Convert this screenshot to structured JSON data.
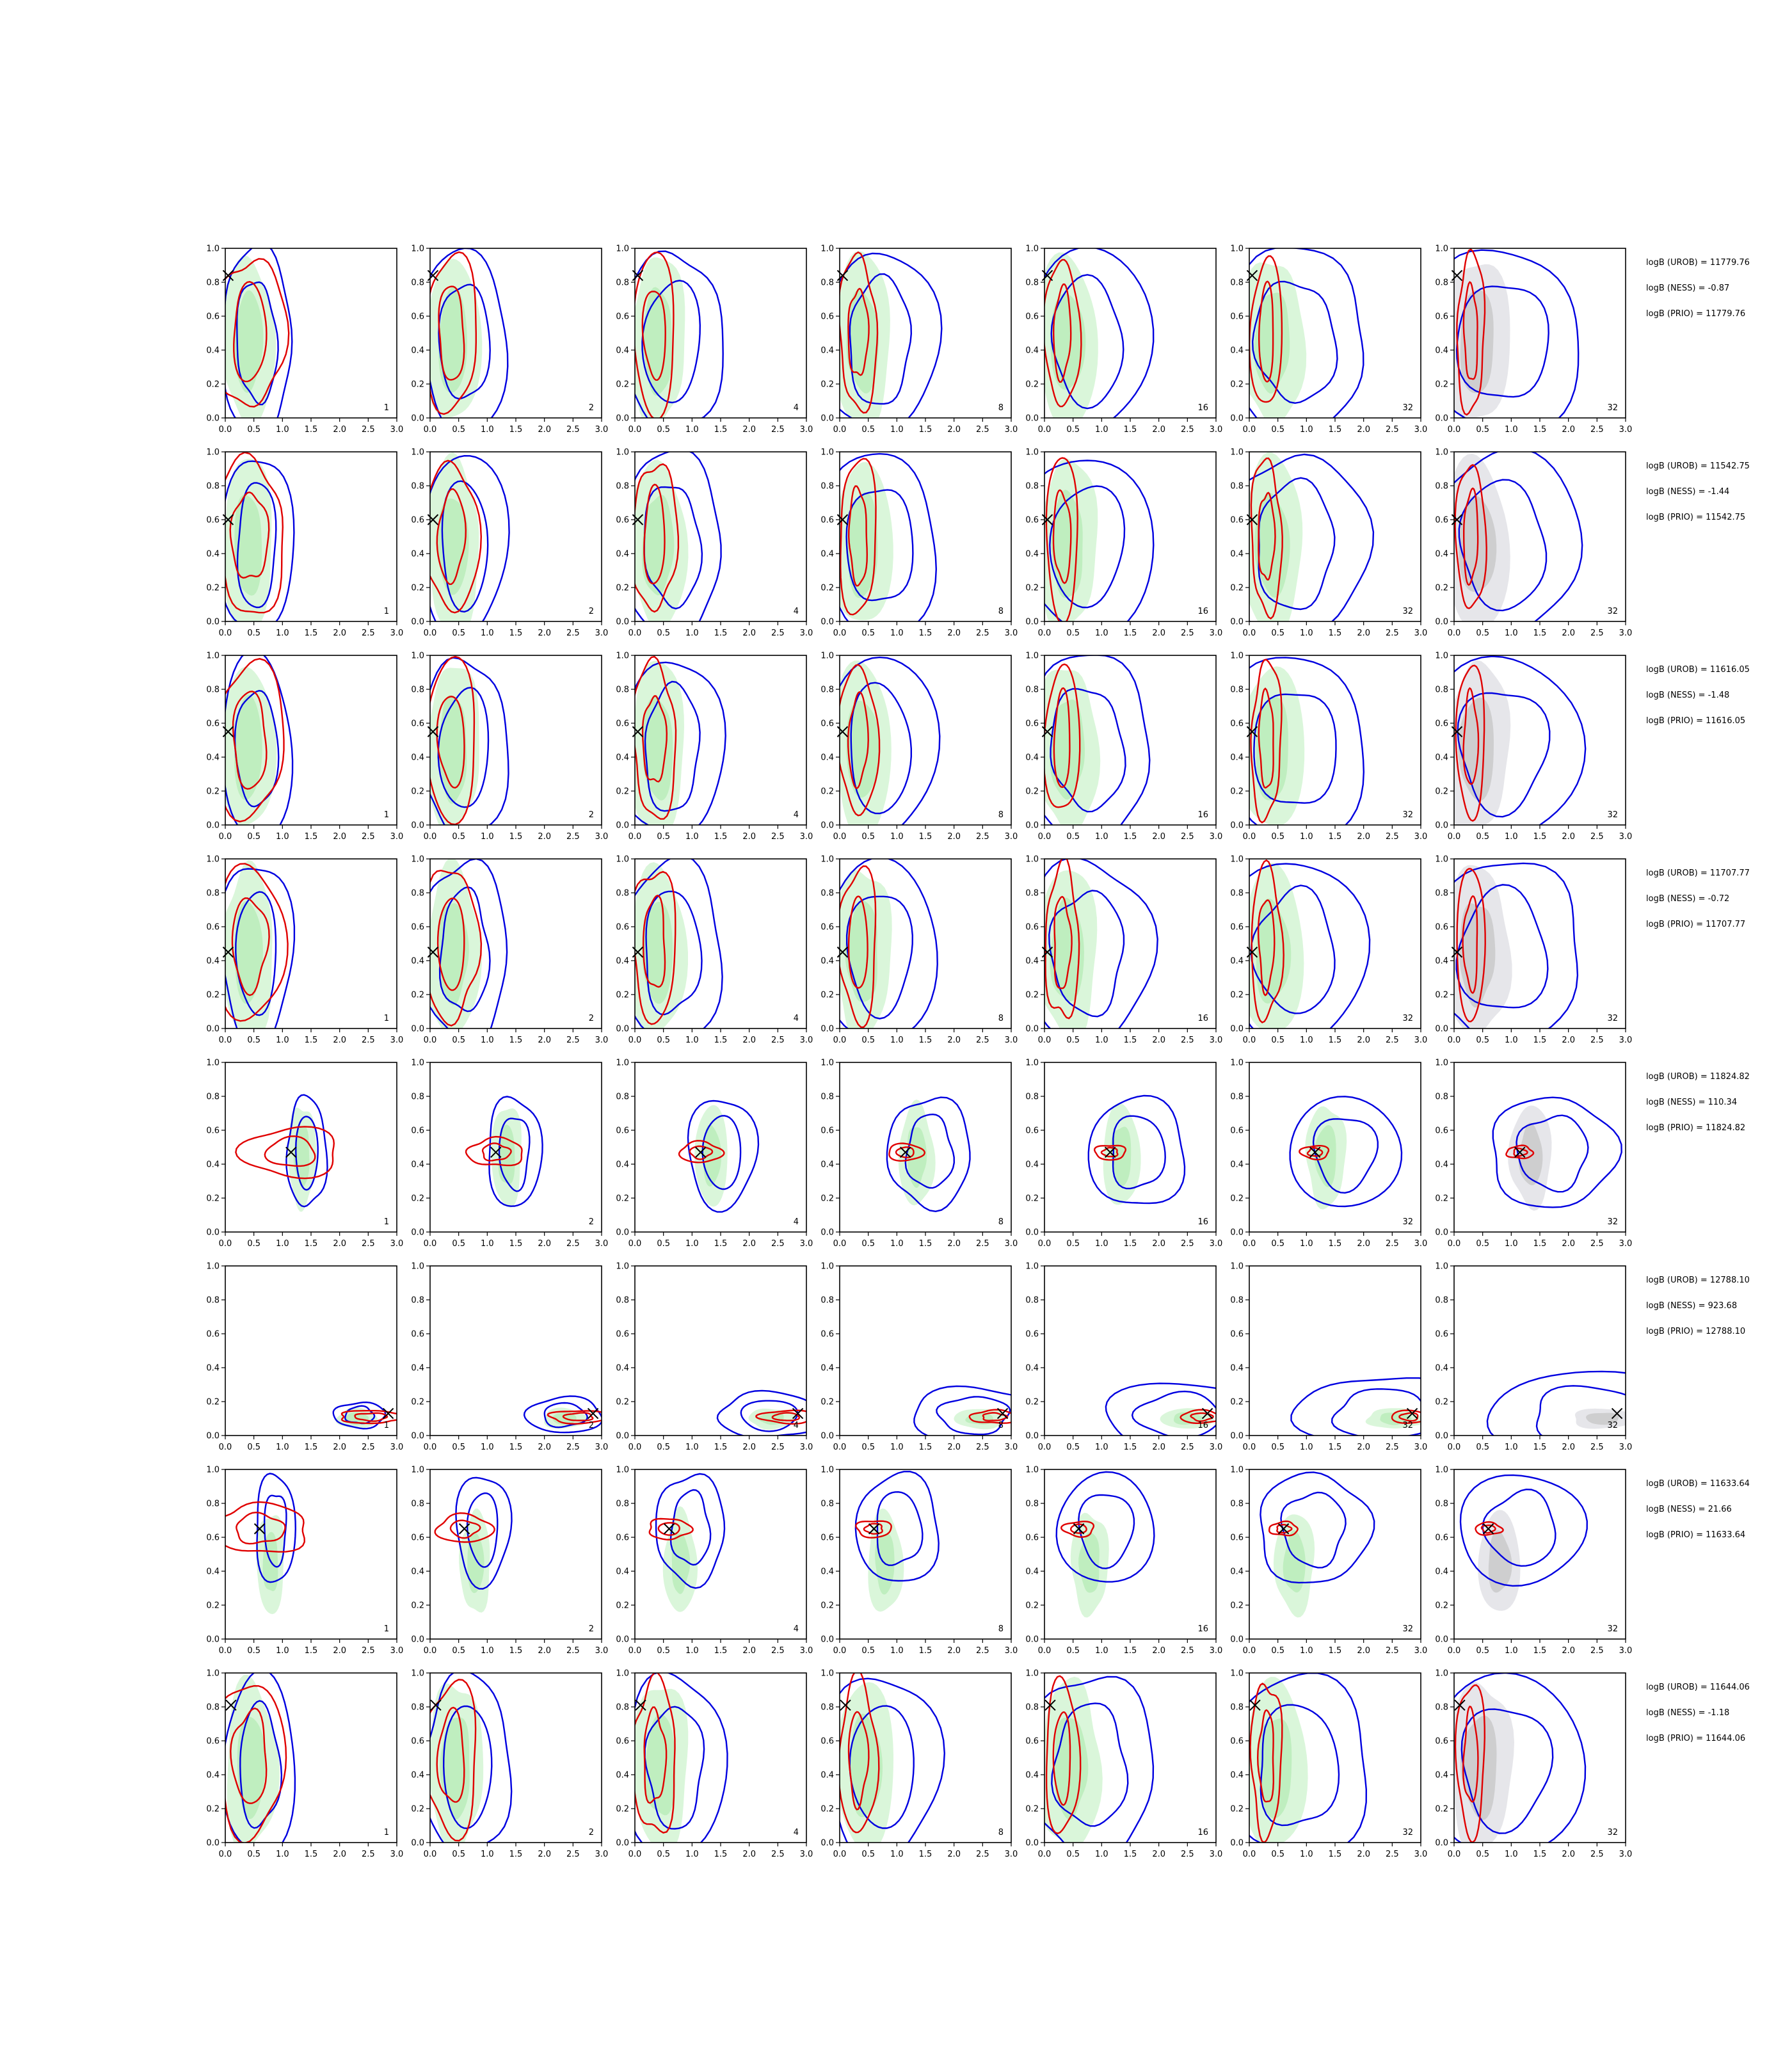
{
  "figure": {
    "colors": {
      "green_fill": "#b8ecb8",
      "green_fill_light": "#d6f5d6",
      "grey_fill": "#c8c8c8",
      "grey_fill_light": "#e3e3e8",
      "red_line": "#e00000",
      "blue_line": "#0000e0",
      "marker": "#000000"
    },
    "column_numbers": [
      "1",
      "2",
      "4",
      "8",
      "16",
      "32",
      "32"
    ],
    "axes": {
      "xlim": [
        0,
        3
      ],
      "ylim": [
        0,
        1
      ],
      "xticks": [
        "0.0",
        "0.5",
        "1.0",
        "1.5",
        "2.0",
        "2.5",
        "3.0"
      ],
      "yticks": [
        "0.0",
        "0.2",
        "0.4",
        "0.6",
        "0.8",
        "1.0"
      ]
    }
  },
  "chart_data": {
    "type": "contour",
    "rows": [
      {
        "truth": [
          0.05,
          0.84
        ],
        "stats": [
          "logB (UROB) = 11779.76",
          "logB (NESS) = -0.87",
          "logB (PRIO) = 11779.76"
        ]
      },
      {
        "truth": [
          0.05,
          0.6
        ],
        "stats": [
          "logB (UROB) = 11542.75",
          "logB (NESS) = -1.44",
          "logB (PRIO) = 11542.75"
        ]
      },
      {
        "truth": [
          0.05,
          0.55
        ],
        "stats": [
          "logB (UROB) = 11616.05",
          "logB (NESS) = -1.48",
          "logB (PRIO) = 11616.05"
        ]
      },
      {
        "truth": [
          0.05,
          0.45
        ],
        "stats": [
          "logB (UROB) = 11707.77",
          "logB (NESS) = -0.72",
          "logB (PRIO) = 11707.77"
        ]
      },
      {
        "truth": [
          1.15,
          0.47
        ],
        "stats": [
          "logB (UROB) = 11824.82",
          "logB (NESS) = 110.34",
          "logB (PRIO) = 11824.82"
        ]
      },
      {
        "truth": [
          2.85,
          0.13
        ],
        "stats": [
          "logB (UROB) = 12788.10",
          "logB (NESS) = 923.68",
          "logB (PRIO) = 12788.10"
        ]
      },
      {
        "truth": [
          0.6,
          0.65
        ],
        "stats": [
          "logB (UROB) = 11633.64",
          "logB (NESS) = 21.66",
          "logB (PRIO) = 11633.64"
        ]
      },
      {
        "truth": [
          0.1,
          0.81
        ],
        "stats": [
          "logB (UROB) = 11644.06",
          "logB (NESS) = -1.18",
          "logB (PRIO) = 11644.06"
        ]
      }
    ]
  }
}
